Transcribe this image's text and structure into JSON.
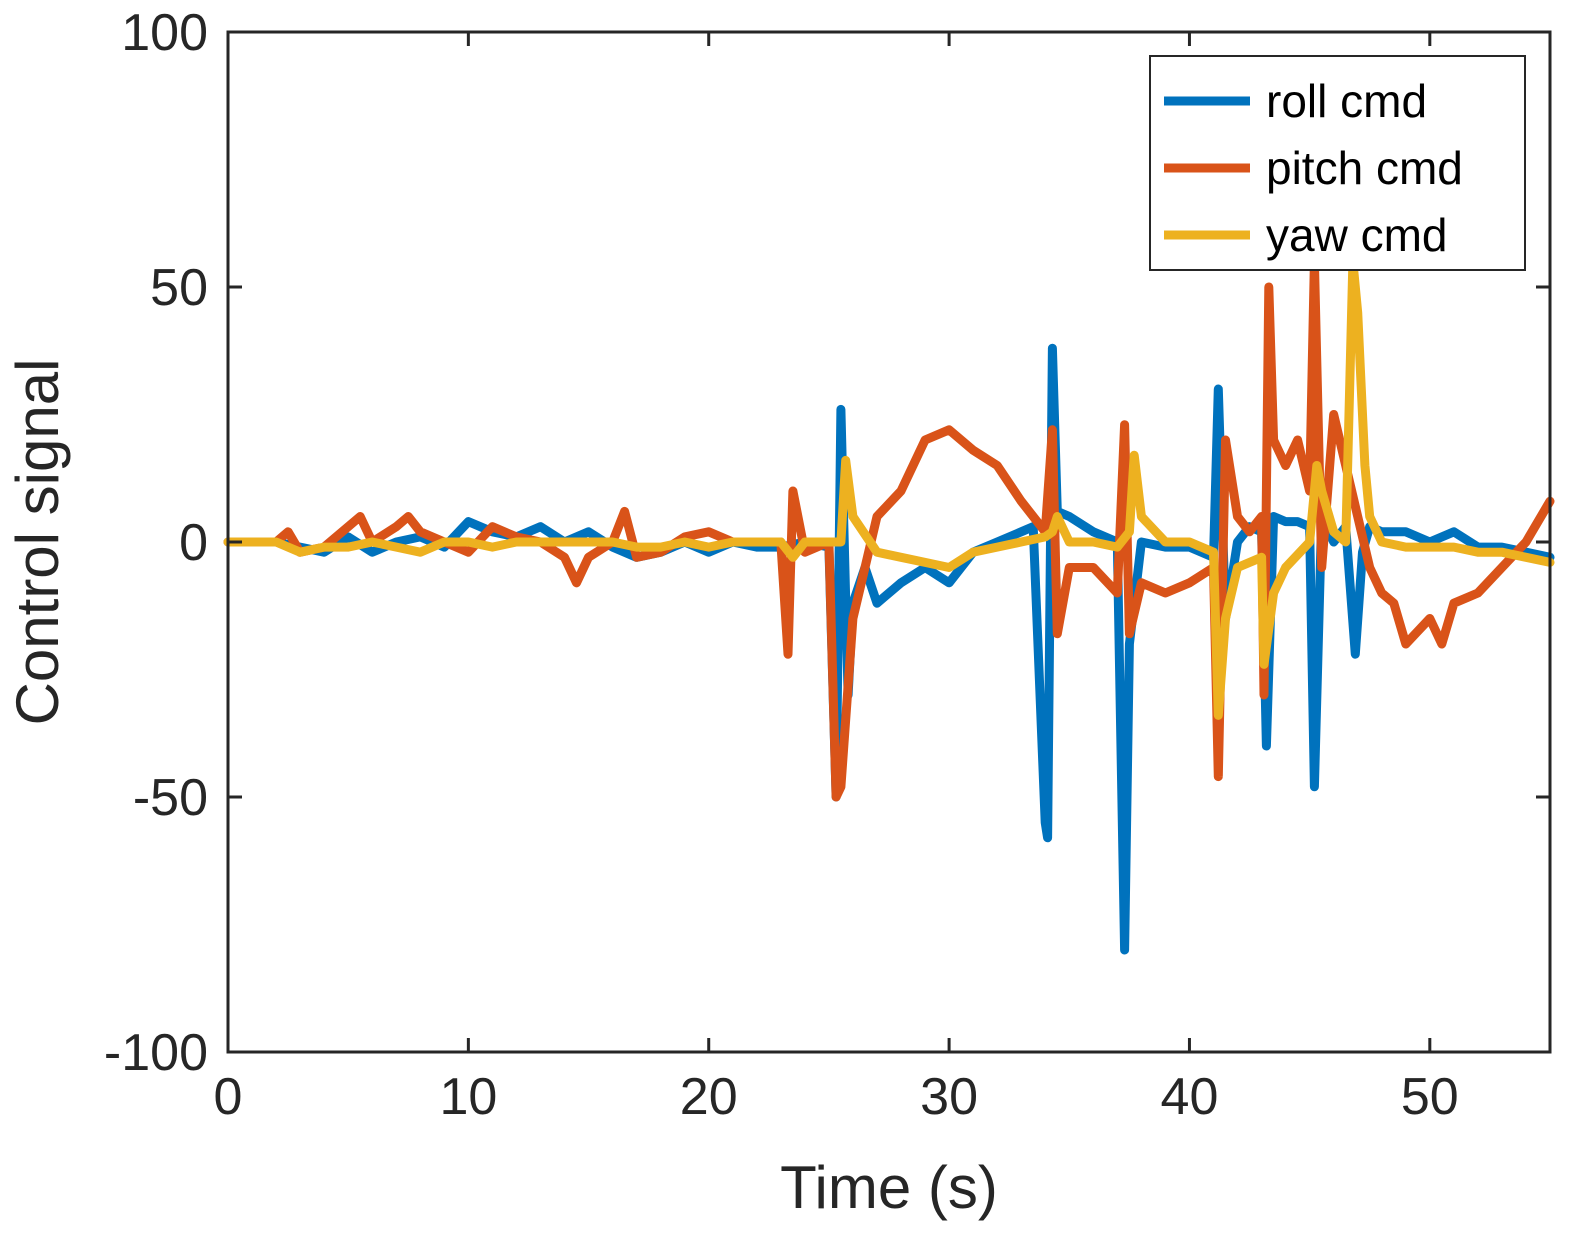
{
  "chart_data": {
    "type": "line",
    "xlabel": "Time (s)",
    "ylabel": "Control signal",
    "xlim": [
      0,
      55
    ],
    "ylim": [
      -100,
      100
    ],
    "xticks": [
      0,
      10,
      20,
      30,
      40,
      50
    ],
    "yticks": [
      -100,
      -50,
      0,
      50,
      100
    ],
    "xtick_labels": [
      "0",
      "10",
      "20",
      "30",
      "40",
      "50"
    ],
    "ytick_labels": [
      "-100",
      "-50",
      "0",
      "50",
      "100"
    ],
    "grid": false,
    "legend_position": "top-right",
    "series": [
      {
        "name": "roll cmd",
        "color": "#0072BD",
        "x": [
          0,
          2,
          3,
          4,
          5,
          6,
          7,
          8,
          9,
          10,
          11,
          12,
          13,
          14,
          15,
          16,
          17,
          18,
          19,
          20,
          21,
          22,
          23,
          24,
          25,
          25.3,
          25.5,
          25.8,
          26,
          26.5,
          27,
          28,
          29,
          30,
          31,
          32,
          33,
          33.5,
          34,
          34.1,
          34.3,
          34.5,
          35,
          36,
          37,
          37.3,
          37.5,
          38,
          39,
          40,
          41,
          41.2,
          41.5,
          42,
          42.5,
          43,
          43.2,
          43.5,
          44,
          44.5,
          45,
          45.2,
          45.5,
          46,
          46.5,
          46.9,
          47.2,
          47.5,
          48,
          49,
          50,
          51,
          52,
          53,
          54,
          55
        ],
        "values": [
          0,
          0,
          -1,
          -2,
          1,
          -2,
          0,
          1,
          -1,
          4,
          2,
          1,
          3,
          0,
          2,
          -1,
          -3,
          -2,
          0,
          -2,
          0,
          -1,
          -1,
          0,
          -1,
          -50,
          26,
          -30,
          -12,
          -5,
          -12,
          -8,
          -5,
          -8,
          -2,
          0,
          2,
          3,
          -55,
          -58,
          38,
          6,
          5,
          2,
          0,
          -80,
          -20,
          0,
          -1,
          -1,
          -3,
          30,
          -15,
          0,
          3,
          2,
          -40,
          5,
          4,
          4,
          3,
          -48,
          5,
          0,
          3,
          -22,
          -2,
          3,
          2,
          2,
          0,
          2,
          -1,
          -1,
          -2,
          -3
        ]
      },
      {
        "name": "pitch cmd",
        "color": "#D95319",
        "x": [
          0,
          2,
          2.5,
          3,
          4,
          5,
          5.5,
          6,
          7,
          7.5,
          8,
          9,
          10,
          11,
          12,
          13,
          14,
          14.5,
          15,
          16,
          16.5,
          17,
          18,
          19,
          20,
          21,
          22,
          23,
          23.3,
          23.5,
          24,
          25,
          25.3,
          25.5,
          26,
          26.5,
          27,
          28,
          29,
          30,
          31,
          32,
          33,
          34,
          34.3,
          34.5,
          35,
          36,
          37,
          37.3,
          37.5,
          38,
          39,
          40,
          41,
          41.2,
          41.5,
          42,
          42.5,
          43,
          43.1,
          43.3,
          43.5,
          44,
          44.5,
          45,
          45.2,
          45.5,
          46,
          46.5,
          47,
          47.5,
          48,
          48.5,
          49,
          50,
          50.5,
          51,
          52,
          53,
          54,
          55
        ],
        "values": [
          0,
          0,
          2,
          -2,
          -1,
          3,
          5,
          0,
          3,
          5,
          2,
          0,
          -2,
          3,
          1,
          0,
          -3,
          -8,
          -3,
          0,
          6,
          -3,
          -2,
          1,
          2,
          0,
          0,
          0,
          -22,
          10,
          -2,
          0,
          -50,
          -48,
          -15,
          -5,
          5,
          10,
          20,
          22,
          18,
          15,
          8,
          2,
          22,
          -18,
          -5,
          -5,
          -10,
          23,
          -18,
          -8,
          -10,
          -8,
          -5,
          -46,
          20,
          5,
          2,
          5,
          -30,
          50,
          20,
          15,
          20,
          10,
          55,
          -5,
          25,
          15,
          5,
          -5,
          -10,
          -12,
          -20,
          -15,
          -20,
          -12,
          -10,
          -5,
          0,
          8
        ]
      },
      {
        "name": "yaw cmd",
        "color": "#EDB120",
        "x": [
          0,
          2,
          3,
          4,
          5,
          6,
          7,
          8,
          9,
          10,
          11,
          12,
          13,
          14,
          15,
          16,
          17,
          18,
          19,
          20,
          21,
          22,
          23,
          23.5,
          24,
          25,
          25.5,
          25.7,
          26,
          27,
          28,
          29,
          30,
          31,
          32,
          33,
          34,
          34.3,
          34.5,
          35,
          36,
          37,
          37.5,
          37.7,
          38,
          39,
          40,
          41,
          41.2,
          41.5,
          42,
          43,
          43.1,
          43.5,
          44,
          45,
          45.3,
          45.5,
          46,
          46.5,
          46.8,
          47,
          47.3,
          47.5,
          48,
          49,
          50,
          51,
          52,
          53,
          54,
          55
        ],
        "values": [
          0,
          0,
          -2,
          -1,
          -1,
          0,
          -1,
          -2,
          0,
          0,
          -1,
          0,
          0,
          0,
          0,
          0,
          -1,
          -1,
          0,
          -1,
          0,
          0,
          0,
          -3,
          0,
          0,
          0,
          16,
          5,
          -2,
          -3,
          -4,
          -5,
          -2,
          -1,
          0,
          1,
          2,
          5,
          0,
          0,
          -1,
          2,
          17,
          5,
          0,
          0,
          -2,
          -34,
          -15,
          -5,
          -3,
          -24,
          -10,
          -5,
          0,
          15,
          10,
          2,
          0,
          55,
          45,
          15,
          5,
          0,
          -1,
          -1,
          -1,
          -2,
          -2,
          -3,
          -4
        ]
      }
    ]
  }
}
